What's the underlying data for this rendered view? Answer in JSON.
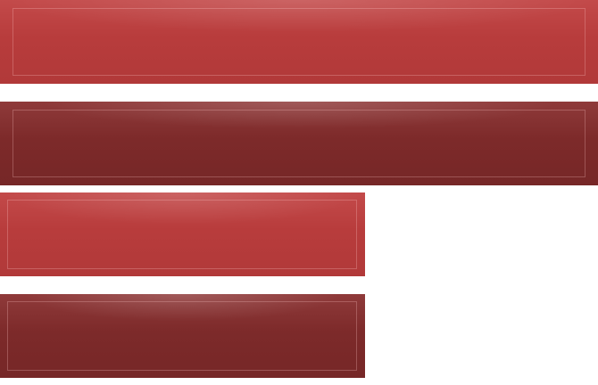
{
  "buttons": [
    {
      "state": "normal",
      "variant": "wide",
      "color": "#b83c3c"
    },
    {
      "state": "pressed",
      "variant": "wide",
      "color": "#7d2a2a"
    },
    {
      "state": "normal",
      "variant": "narrow",
      "color": "#b83c3c"
    },
    {
      "state": "pressed",
      "variant": "narrow",
      "color": "#7d2a2a"
    }
  ],
  "colors": {
    "background": "#ffffff",
    "button_normal": "#b83c3c",
    "button_pressed": "#7d2a2a",
    "inner_border": "#d88a8a"
  }
}
